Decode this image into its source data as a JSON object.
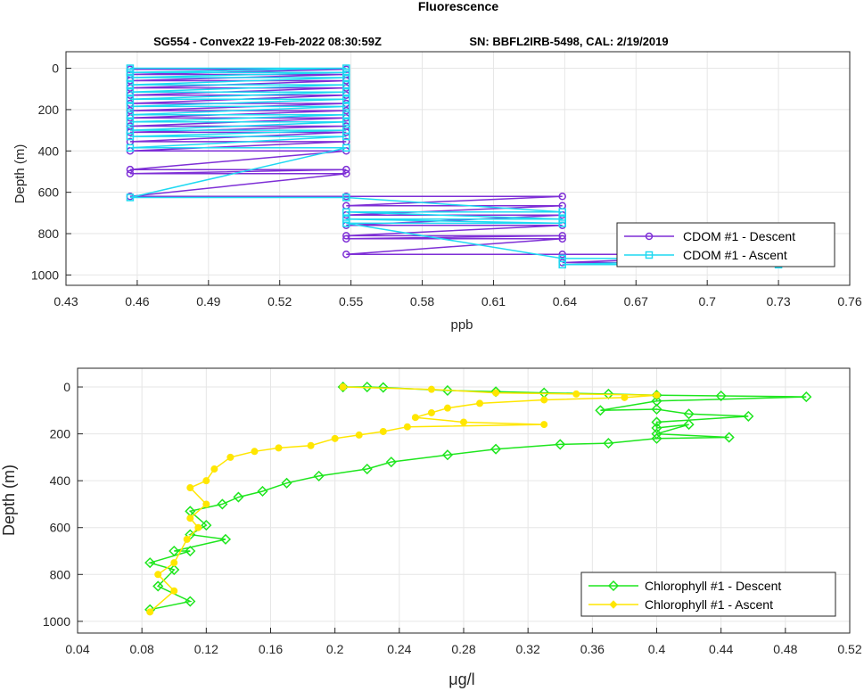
{
  "figure_title": "Fluorescence",
  "chart_data": [
    {
      "type": "line",
      "title_left": "SG554 - Convex22 19-Feb-2022 08:30:59Z",
      "title_right": "SN: BBFL2IRB-5498, CAL: 2/19/2019",
      "xlabel": "ppb",
      "ylabel": "Depth (m)",
      "xlim": [
        0.43,
        0.76
      ],
      "ylim": [
        1050,
        -80
      ],
      "y_reversed": true,
      "grid": true,
      "xticks": [
        "0.43",
        "0.46",
        "0.49",
        "0.52",
        "0.55",
        "0.58",
        "0.61",
        "0.64",
        "0.67",
        "0.7",
        "0.73",
        "0.76"
      ],
      "yticks": [
        "0",
        "200",
        "400",
        "600",
        "800",
        "1000"
      ],
      "legend_position": "bottom-right",
      "series": [
        {
          "name": "CDOM #1 - Descent",
          "color": "#7e2fd6",
          "marker": "circle",
          "x": [
            0.457,
            0.548,
            0.457,
            0.548,
            0.457,
            0.548,
            0.457,
            0.548,
            0.457,
            0.548,
            0.457,
            0.548,
            0.457,
            0.548,
            0.457,
            0.548,
            0.457,
            0.548,
            0.457,
            0.548,
            0.457,
            0.548,
            0.457,
            0.548,
            0.457,
            0.548,
            0.457,
            0.548,
            0.457,
            0.548,
            0.639,
            0.548,
            0.639,
            0.548,
            0.639,
            0.548,
            0.639,
            0.548,
            0.639,
            0.548,
            0.639,
            0.548,
            0.639,
            0.73,
            0.639,
            0.73
          ],
          "y": [
            5,
            5,
            30,
            30,
            60,
            60,
            95,
            95,
            130,
            130,
            170,
            170,
            205,
            205,
            240,
            240,
            280,
            280,
            310,
            310,
            355,
            355,
            400,
            400,
            490,
            490,
            510,
            510,
            620,
            620,
            620,
            665,
            665,
            710,
            710,
            760,
            760,
            810,
            810,
            825,
            825,
            900,
            900,
            900,
            940,
            940
          ]
        },
        {
          "name": "CDOM #1 - Ascent",
          "color": "#1fd9f2",
          "marker": "square",
          "x": [
            0.457,
            0.548,
            0.457,
            0.548,
            0.457,
            0.548,
            0.457,
            0.548,
            0.457,
            0.548,
            0.457,
            0.548,
            0.457,
            0.548,
            0.457,
            0.548,
            0.457,
            0.548,
            0.457,
            0.548,
            0.457,
            0.548,
            0.457,
            0.548,
            0.457,
            0.548,
            0.639,
            0.548,
            0.639,
            0.548,
            0.639,
            0.548,
            0.639,
            0.73,
            0.639,
            0.73
          ],
          "y": [
            0,
            0,
            20,
            20,
            45,
            45,
            80,
            80,
            115,
            115,
            150,
            150,
            185,
            185,
            225,
            225,
            260,
            260,
            300,
            300,
            330,
            330,
            385,
            385,
            625,
            625,
            695,
            695,
            730,
            730,
            750,
            750,
            920,
            920,
            950,
            950
          ]
        }
      ]
    },
    {
      "type": "line",
      "xlabel": "μg/l",
      "ylabel": "Depth (m)",
      "xlim": [
        0.04,
        0.52
      ],
      "ylim": [
        1050,
        -80
      ],
      "y_reversed": true,
      "grid": true,
      "xticks": [
        "0.04",
        "0.08",
        "0.12",
        "0.16",
        "0.2",
        "0.24",
        "0.28",
        "0.32",
        "0.36",
        "0.4",
        "0.44",
        "0.48",
        "0.52"
      ],
      "yticks": [
        "0",
        "200",
        "400",
        "600",
        "800",
        "1000"
      ],
      "legend_position": "bottom-right",
      "series": [
        {
          "name": "Chlorophyll #1 - Descent",
          "color": "#1ee61e",
          "marker": "diamond",
          "x": [
            0.205,
            0.22,
            0.23,
            0.27,
            0.3,
            0.33,
            0.37,
            0.4,
            0.44,
            0.493,
            0.4,
            0.365,
            0.4,
            0.42,
            0.457,
            0.4,
            0.4,
            0.42,
            0.4,
            0.445,
            0.4,
            0.37,
            0.34,
            0.3,
            0.27,
            0.235,
            0.22,
            0.19,
            0.17,
            0.155,
            0.14,
            0.13,
            0.11,
            0.12,
            0.11,
            0.132,
            0.1,
            0.11,
            0.085,
            0.1,
            0.09,
            0.11,
            0.085
          ],
          "y": [
            0,
            0,
            2,
            15,
            20,
            25,
            30,
            35,
            38,
            42,
            60,
            100,
            95,
            115,
            125,
            150,
            175,
            160,
            200,
            215,
            220,
            240,
            245,
            265,
            290,
            320,
            350,
            380,
            410,
            445,
            470,
            500,
            530,
            590,
            630,
            650,
            700,
            700,
            750,
            780,
            850,
            915,
            950
          ]
        },
        {
          "name": "Chlorophyll #1 - Ascent",
          "color": "#ffe600",
          "marker": "circle",
          "x": [
            0.205,
            0.26,
            0.3,
            0.35,
            0.4,
            0.38,
            0.33,
            0.29,
            0.27,
            0.26,
            0.25,
            0.28,
            0.33,
            0.245,
            0.23,
            0.215,
            0.2,
            0.185,
            0.165,
            0.15,
            0.135,
            0.125,
            0.12,
            0.11,
            0.12,
            0.11,
            0.115,
            0.108,
            0.1,
            0.09,
            0.1,
            0.085
          ],
          "y": [
            0,
            10,
            25,
            30,
            35,
            45,
            55,
            70,
            90,
            110,
            130,
            150,
            160,
            170,
            190,
            205,
            220,
            250,
            260,
            275,
            300,
            350,
            400,
            430,
            500,
            560,
            600,
            650,
            750,
            800,
            870,
            960
          ]
        }
      ]
    }
  ],
  "legend1": [
    "CDOM #1 - Descent",
    "CDOM #1 - Ascent"
  ],
  "legend2": [
    "Chlorophyll #1 - Descent",
    "Chlorophyll #1 - Ascent"
  ]
}
